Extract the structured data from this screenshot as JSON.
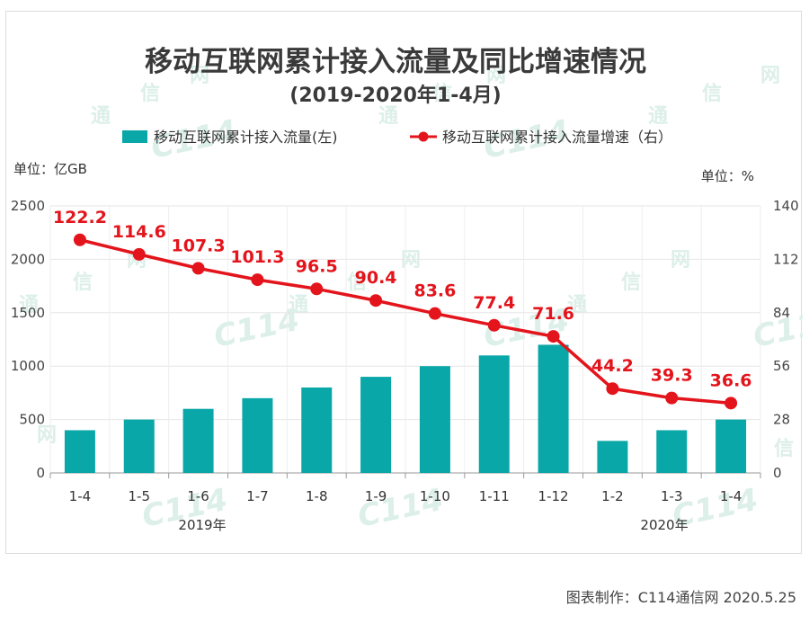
{
  "chart_data": {
    "type": "bar",
    "title": "移动互联网累计接入流量及同比增速情况",
    "subtitle": "(2019-2020年1-4月)",
    "categories": [
      "1-4",
      "1-5",
      "1-6",
      "1-7",
      "1-8",
      "1-9",
      "1-10",
      "1-11",
      "1-12",
      "1-2",
      "1-3",
      "1-4"
    ],
    "year_groups": [
      {
        "label": "2019年",
        "from": 0,
        "to": 8
      },
      {
        "label": "2020年",
        "from": 9,
        "to": 11
      }
    ],
    "series": [
      {
        "name": "移动互联网累计接入流量(左)",
        "type": "bar",
        "axis": "left",
        "color": "#0aa7a8",
        "values": [
          400,
          500,
          600,
          700,
          800,
          900,
          1000,
          1100,
          1200,
          300,
          400,
          500
        ]
      },
      {
        "name": "移动互联网累计接入流量增速（右）",
        "type": "line",
        "axis": "right",
        "color": "#e3141b",
        "values": [
          122.2,
          114.6,
          107.3,
          101.3,
          96.5,
          90.4,
          83.6,
          77.4,
          71.6,
          44.2,
          39.3,
          36.6
        ],
        "labels": [
          "122.2",
          "114.6",
          "107.3",
          "101.3",
          "96.5",
          "90.4",
          "83.6",
          "77.4",
          "71.6",
          "44.2",
          "39.3",
          "36.6"
        ]
      }
    ],
    "y_left": {
      "unit_label": "单位：亿GB",
      "ylim": [
        0,
        2500
      ],
      "ticks": [
        0,
        500,
        1000,
        1500,
        2000,
        2500
      ]
    },
    "y_right": {
      "unit_label": "单位：%",
      "ylim": [
        0,
        140
      ],
      "ticks": [
        0,
        28,
        56,
        84,
        112,
        140
      ]
    },
    "grid": true,
    "legend_position": "top"
  },
  "watermark_text": {
    "tong": "通",
    "xin": "信",
    "wang": "网",
    "logo": "C114"
  },
  "credit": "图表制作：C114通信网  2020.5.25"
}
